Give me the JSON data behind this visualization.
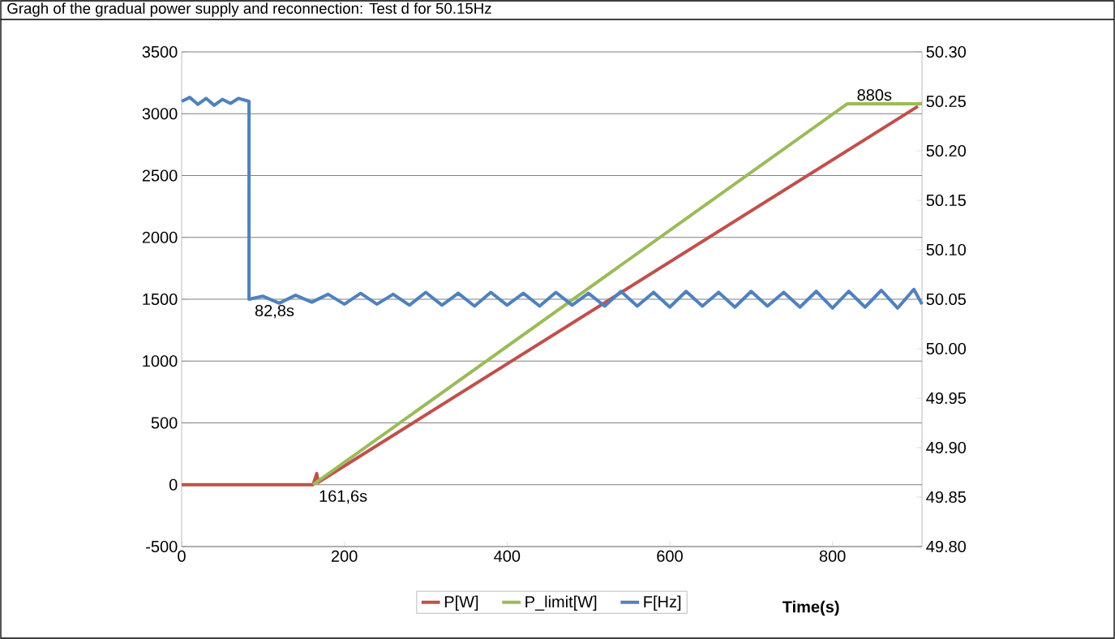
{
  "chart_data": {
    "type": "line",
    "title": "Gragh of the gradual power supply and reconnection: Test d for 50.15Hz",
    "xlabel": "Time(s)",
    "xlim": [
      0,
      910
    ],
    "xticks": [
      0,
      200,
      400,
      600,
      800
    ],
    "ylim": [
      -500,
      3500
    ],
    "yticks": [
      -500,
      0,
      500,
      1000,
      1500,
      2000,
      2500,
      3000,
      3500
    ],
    "y2lim": [
      49.8,
      50.3
    ],
    "y2ticks": [
      {
        "value": 49.8,
        "label": "49.80"
      },
      {
        "value": 49.85,
        "label": "49.85"
      },
      {
        "value": 49.9,
        "label": "49.90"
      },
      {
        "value": 49.95,
        "label": "49.95"
      },
      {
        "value": 50.0,
        "label": "50.00"
      },
      {
        "value": 50.05,
        "label": "50.05"
      },
      {
        "value": 50.1,
        "label": "50.10"
      },
      {
        "value": 50.15,
        "label": "50.15"
      },
      {
        "value": 50.2,
        "label": "50.20"
      },
      {
        "value": 50.25,
        "label": "50.25"
      },
      {
        "value": 50.3,
        "label": "50.30"
      }
    ],
    "grid": "y",
    "legend": "bottom",
    "series": [
      {
        "name": "P[W]",
        "color": "#c0504d",
        "x": [
          0,
          161.6,
          166,
          168,
          905
        ],
        "values": [
          0,
          0,
          90,
          20,
          3060
        ]
      },
      {
        "name": "P_limit[W]",
        "color": "#9bbb59",
        "x": [
          161.6,
          818,
          910
        ],
        "values": [
          0,
          3080,
          3080
        ]
      },
      {
        "name": "F[Hz]",
        "color": "#4f81bd",
        "axis": "y2",
        "x": [
          0,
          10,
          20,
          30,
          40,
          50,
          60,
          70,
          82.8,
          82.8,
          100,
          120,
          140,
          160,
          180,
          200,
          220,
          240,
          260,
          280,
          300,
          320,
          340,
          360,
          380,
          400,
          420,
          440,
          460,
          480,
          500,
          520,
          540,
          560,
          580,
          600,
          620,
          640,
          660,
          680,
          700,
          720,
          740,
          760,
          780,
          800,
          820,
          840,
          860,
          880,
          900,
          910
        ],
        "values": [
          50.25,
          50.254,
          50.247,
          50.253,
          50.246,
          50.252,
          50.248,
          50.253,
          50.25,
          50.05,
          50.053,
          50.046,
          50.054,
          50.047,
          50.055,
          50.045,
          50.056,
          50.045,
          50.055,
          50.044,
          50.057,
          50.044,
          50.056,
          50.043,
          50.057,
          50.044,
          50.056,
          50.043,
          50.057,
          50.044,
          50.056,
          50.043,
          50.058,
          50.043,
          50.057,
          50.042,
          50.058,
          50.043,
          50.057,
          50.042,
          50.058,
          50.043,
          50.057,
          50.042,
          50.058,
          50.041,
          50.058,
          50.042,
          50.059,
          50.041,
          50.06,
          50.045
        ]
      }
    ],
    "annotations": [
      {
        "text": "82,8s",
        "x": 82.8,
        "y": 1500
      },
      {
        "text": "161,6s",
        "x": 161.6,
        "y": 0
      },
      {
        "text": "880s",
        "x": 880,
        "y": 3060
      }
    ]
  }
}
